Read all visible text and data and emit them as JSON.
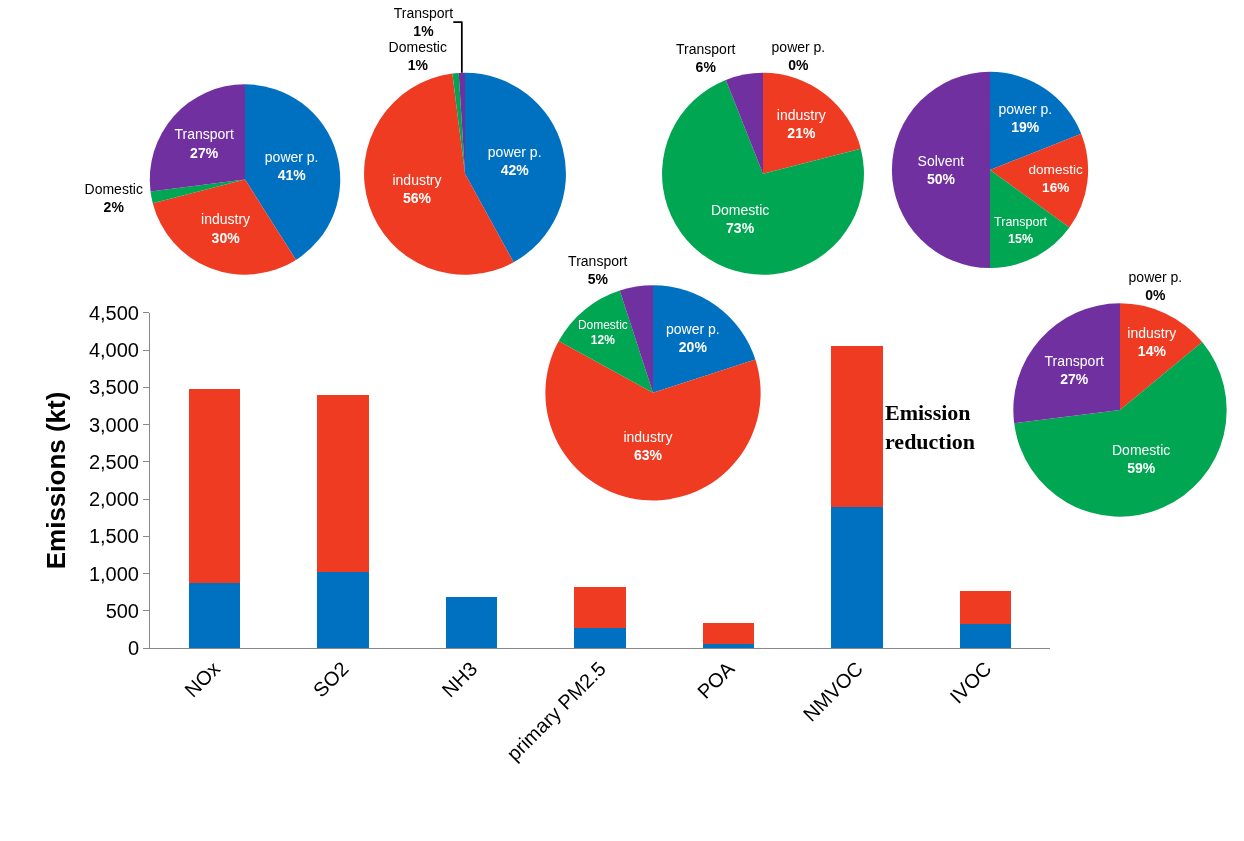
{
  "chart_data": [
    {
      "type": "bar",
      "stacked": true,
      "ylabel": "Emissions (kt)",
      "categories": [
        "NOx",
        "SO2",
        "NH3",
        "primary PM2.5",
        "POA",
        "NMVOC",
        "IVOC"
      ],
      "series": [
        {
          "color": "#0070c0",
          "values": [
            880,
            1020,
            690,
            270,
            60,
            1900,
            320
          ]
        },
        {
          "color": "#ee3b22",
          "values": [
            2600,
            2380,
            null,
            550,
            270,
            2150,
            440
          ]
        }
      ],
      "ylim": [
        0,
        4500
      ],
      "yticks": [
        {
          "value": 0,
          "label": "0"
        },
        {
          "value": 500,
          "label": "500"
        },
        {
          "value": 1000,
          "label": "1,000"
        },
        {
          "value": 1500,
          "label": "1,500"
        },
        {
          "value": 2000,
          "label": "2,000"
        },
        {
          "value": 2500,
          "label": "2,500"
        },
        {
          "value": 3000,
          "label": "3,000"
        },
        {
          "value": 3500,
          "label": "3,500"
        },
        {
          "value": 4000,
          "label": "4,000"
        },
        {
          "value": 4500,
          "label": "4,500"
        }
      ],
      "annotations": [
        "Emission reduction"
      ]
    },
    {
      "type": "pie",
      "categories": [
        "power p.",
        "industry",
        "Domestic",
        "Transport"
      ],
      "values": [
        41,
        30,
        2,
        27
      ],
      "value_labels": [
        "41%",
        "30%",
        "2%",
        "27%"
      ],
      "colors": [
        "#0070c0",
        "#ee3b22",
        "#00a651",
        "#7030a0"
      ]
    },
    {
      "type": "pie",
      "categories": [
        "power p.",
        "industry",
        "Domestic",
        "Transport"
      ],
      "values": [
        42,
        56,
        1,
        1
      ],
      "value_labels": [
        "42%",
        "56%",
        "1%",
        "1%"
      ],
      "colors": [
        "#0070c0",
        "#ee3b22",
        "#00a651",
        "#7030a0"
      ]
    },
    {
      "type": "pie",
      "categories": [
        "power p.",
        "industry",
        "Domestic",
        "Transport"
      ],
      "values": [
        20,
        63,
        12,
        5
      ],
      "value_labels": [
        "20%",
        "63%",
        "12%",
        "5%"
      ],
      "colors": [
        "#0070c0",
        "#ee3b22",
        "#00a651",
        "#7030a0"
      ]
    },
    {
      "type": "pie",
      "categories": [
        "power p.",
        "industry",
        "Domestic",
        "Transport"
      ],
      "values": [
        0,
        21,
        73,
        6
      ],
      "value_labels": [
        "0%",
        "21%",
        "73%",
        "6%"
      ],
      "colors": [
        "#0070c0",
        "#ee3b22",
        "#00a651",
        "#7030a0"
      ]
    },
    {
      "type": "pie",
      "categories": [
        "power p.",
        "domestic",
        "Transport",
        "Solvent"
      ],
      "values": [
        19,
        16,
        15,
        50
      ],
      "value_labels": [
        "19%",
        "16%",
        "15%",
        "50%"
      ],
      "colors": [
        "#0070c0",
        "#ee3b22",
        "#00a651",
        "#7030a0"
      ]
    },
    {
      "type": "pie",
      "categories": [
        "power p.",
        "industry",
        "Domestic",
        "Transport"
      ],
      "values": [
        0,
        14,
        59,
        27
      ],
      "value_labels": [
        "0%",
        "14%",
        "59%",
        "27%"
      ],
      "colors": [
        "#0070c0",
        "#ee3b22",
        "#00a651",
        "#7030a0"
      ]
    }
  ]
}
